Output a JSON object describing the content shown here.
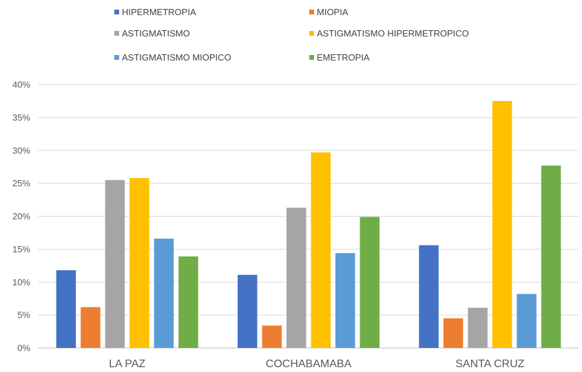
{
  "chart_data": {
    "type": "bar",
    "categories": [
      "LA PAZ",
      "COCHABAMABA",
      "SANTA CRUZ"
    ],
    "series": [
      {
        "name": "HIPERMETROPIA",
        "color": "#4472C4",
        "values": [
          11.8,
          11.1,
          15.6
        ]
      },
      {
        "name": "MIOPIA",
        "color": "#ED7D31",
        "values": [
          6.2,
          3.4,
          4.5
        ]
      },
      {
        "name": "ASTIGMATISMO",
        "color": "#A5A5A5",
        "values": [
          25.5,
          21.3,
          6.1
        ]
      },
      {
        "name": "ASTIGMATISMO HIPERMETROPICO",
        "color": "#FFC000",
        "values": [
          25.8,
          29.7,
          37.5
        ]
      },
      {
        "name": "ASTIGMATISMO MIOPICO",
        "color": "#5B9BD5",
        "values": [
          16.6,
          14.4,
          8.2
        ]
      },
      {
        "name": "EMETROPIA",
        "color": "#70AD47",
        "values": [
          13.9,
          19.9,
          27.7
        ]
      }
    ],
    "ylim": [
      0,
      40
    ],
    "yticks": [
      "0%",
      "5%",
      "10%",
      "15%",
      "20%",
      "25%",
      "30%",
      "35%",
      "40%"
    ],
    "ytick_values": [
      0,
      5,
      10,
      15,
      20,
      25,
      30,
      35,
      40
    ],
    "legend_position": "top",
    "grid": true
  }
}
